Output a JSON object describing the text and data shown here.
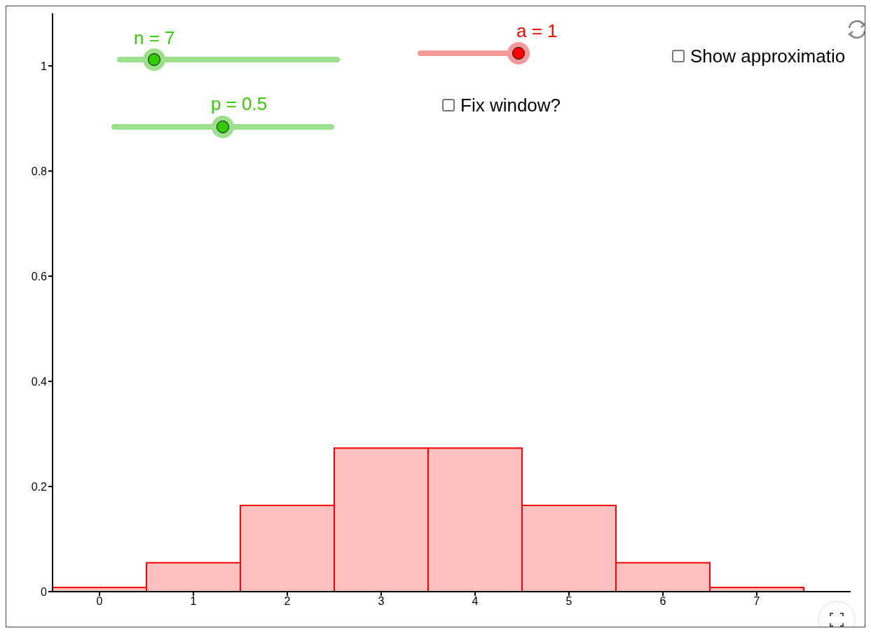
{
  "chart_data": {
    "type": "histogram",
    "bins": [
      -0.5,
      0.5,
      1.5,
      2.5,
      3.5,
      4.5,
      5.5,
      6.5,
      7.5
    ],
    "values": [
      0.008,
      0.055,
      0.164,
      0.273,
      0.273,
      0.164,
      0.055,
      0.008
    ],
    "color": "#ffc0c0",
    "xlim": [
      -0.5,
      8.0
    ],
    "xticks": [
      0,
      1,
      2,
      3,
      4,
      5,
      6,
      7
    ],
    "ylim": [
      0,
      1.1
    ],
    "yticks": [
      0,
      0.2,
      0.4,
      0.6,
      0.8,
      1
    ],
    "grid": false,
    "annotations": [
      "n = 7",
      "p = 0.5",
      "a = 1",
      "Fix window?",
      "Show approximatio"
    ]
  }
}
